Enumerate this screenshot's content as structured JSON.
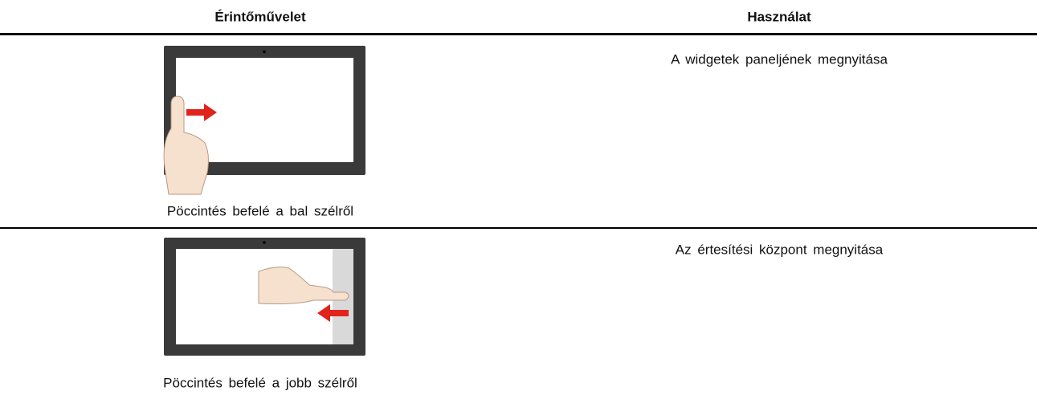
{
  "table": {
    "header": [
      "Érintőművelet",
      "Használat"
    ],
    "rows": [
      {
        "caption": "Pöccintés befelé a bal szélről",
        "usage": "A widgetek paneljének megnyitása"
      },
      {
        "caption": "Pöccintés befelé a jobb szélről",
        "usage": "Az értesítési központ megnyitása"
      }
    ]
  }
}
